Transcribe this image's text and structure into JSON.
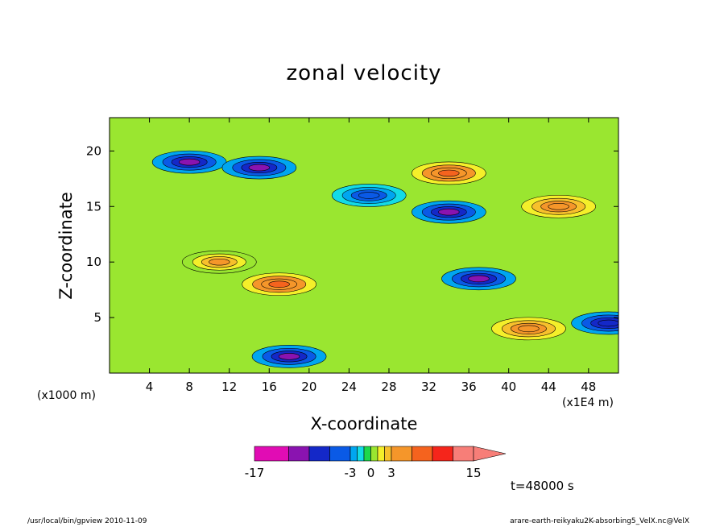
{
  "title": "zonal velocity",
  "time_label": "t=48000 s",
  "footer": {
    "left": "/usr/local/bin/gpview  2010-11-09",
    "right": "arare-earth-reikyaku2K-absorbing5_VelX.nc@VelX"
  },
  "chart_data": {
    "type": "heatmap",
    "title": "zonal velocity",
    "xlabel": "X-coordinate",
    "ylabel": "Z-coordinate",
    "x_unit_left": "(x1000 m)",
    "x_unit_right": "(x1E4 m)",
    "xlim": [
      0,
      51
    ],
    "ylim": [
      0,
      23
    ],
    "x_ticks": [
      "4",
      "8",
      "12",
      "16",
      "20",
      "24",
      "28",
      "32",
      "36",
      "40",
      "44",
      "48"
    ],
    "x_tick_values": [
      4,
      8,
      12,
      16,
      20,
      24,
      28,
      32,
      36,
      40,
      44,
      48
    ],
    "y_ticks": [
      "5",
      "10",
      "15",
      "20"
    ],
    "y_tick_values": [
      5,
      10,
      15,
      20
    ],
    "colorbar": {
      "min": -17,
      "max": 15,
      "labels": [
        "-17",
        "-3",
        "0",
        "3",
        "15"
      ],
      "label_values": [
        -17,
        -3,
        0,
        3,
        15
      ],
      "levels": [
        -17,
        -12,
        -9,
        -6,
        -3,
        -2,
        -1,
        0,
        1,
        2,
        3,
        6,
        9,
        12,
        15
      ],
      "colors": [
        "#e10cb4",
        "#8a13b0",
        "#1428c8",
        "#0a5ae6",
        "#00a6f0",
        "#13dbe6",
        "#1dd84a",
        "#9ae630",
        "#f4ef2a",
        "#f7c02c",
        "#f5962a",
        "#f5631e",
        "#f5251b",
        "#f77e78"
      ]
    },
    "features": [
      {
        "x": 8,
        "z": 19,
        "value": -10
      },
      {
        "x": 15,
        "z": 18.5,
        "value": -12
      },
      {
        "x": 26,
        "z": 16,
        "value": -5
      },
      {
        "x": 34,
        "z": 14.5,
        "value": -11
      },
      {
        "x": 37,
        "z": 8.5,
        "value": -12
      },
      {
        "x": 50,
        "z": 4.5,
        "value": -9
      },
      {
        "x": 18,
        "z": 1.5,
        "value": -11
      },
      {
        "x": 17,
        "z": 8,
        "value": 7
      },
      {
        "x": 34,
        "z": 18,
        "value": 6
      },
      {
        "x": 42,
        "z": 4,
        "value": 4
      },
      {
        "x": 45,
        "z": 15,
        "value": 4
      },
      {
        "x": 11,
        "z": 10,
        "value": 3
      }
    ]
  }
}
